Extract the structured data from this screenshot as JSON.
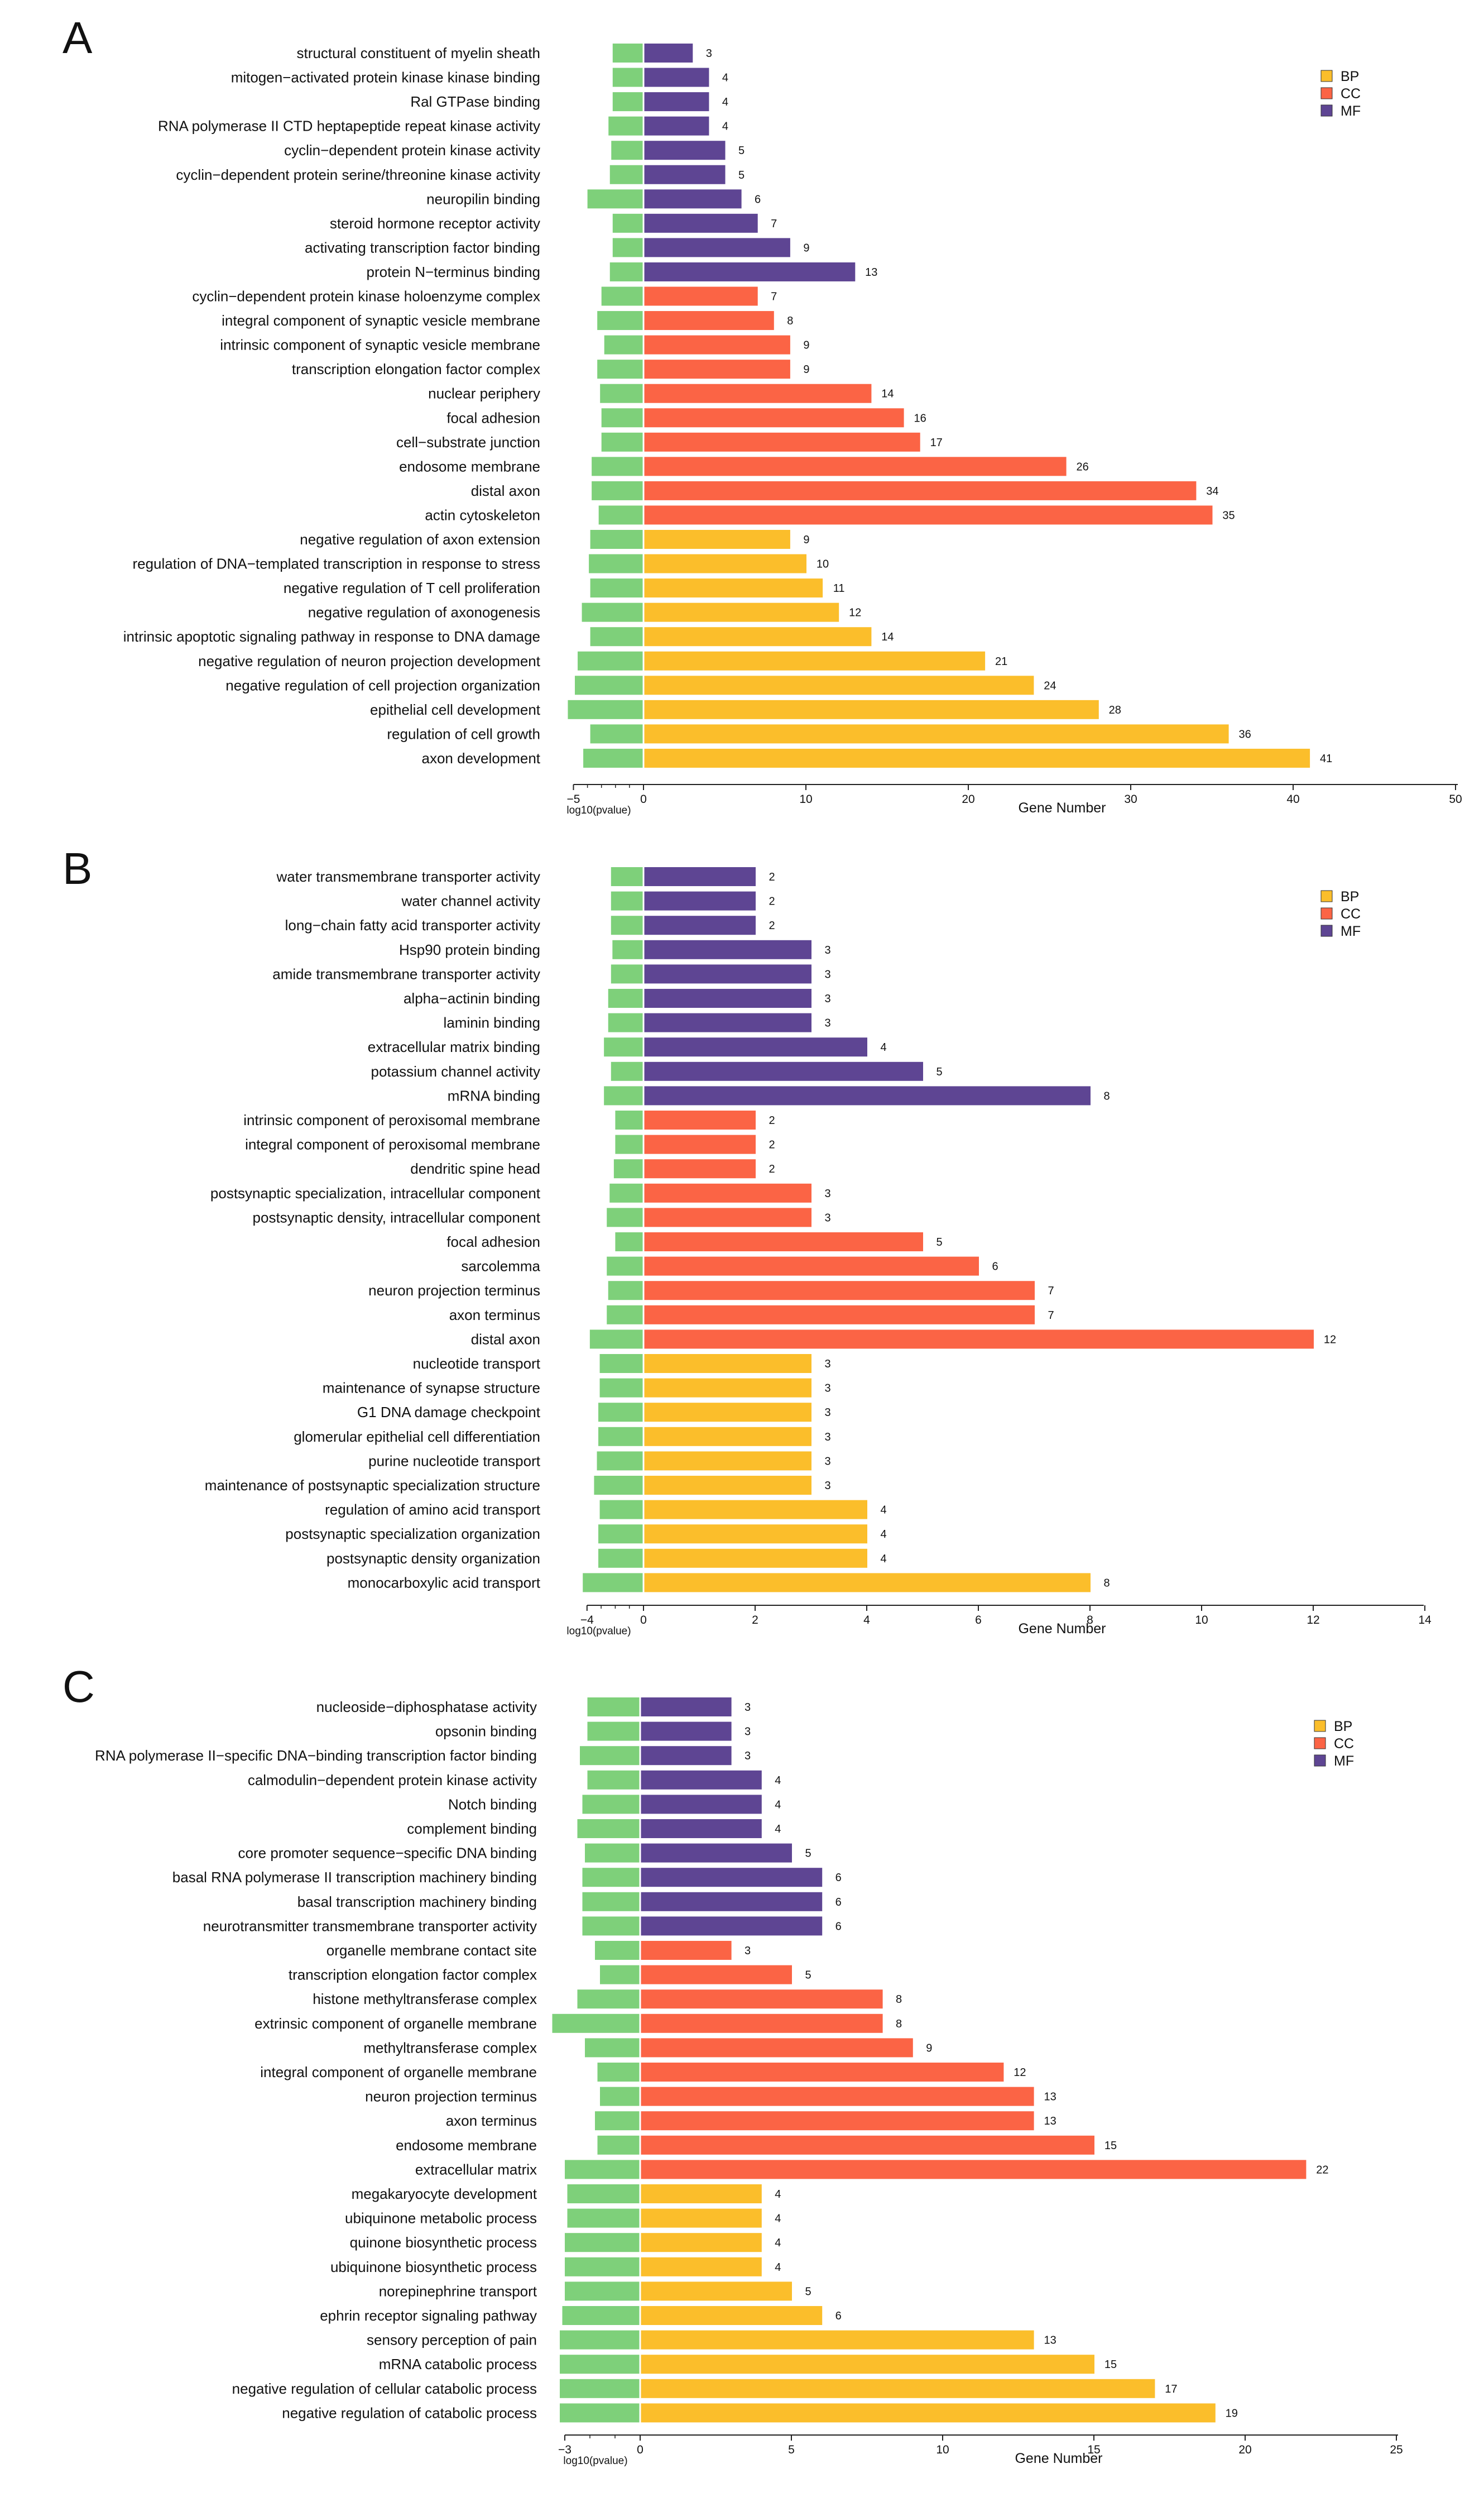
{
  "chart_data": [
    {
      "type": "bar",
      "panel": "A",
      "orientation": "horizontal",
      "xlabel": "Gene Number",
      "pvalue_axis_label": "log10(pvalue)",
      "gene_ticks": [
        "0",
        "10",
        "20",
        "30",
        "40",
        "50"
      ],
      "pvalue_ticks": [
        "−5",
        "0"
      ],
      "xlim": [
        0,
        50
      ],
      "pvalue_xlim": [
        -5,
        0
      ],
      "legend": {
        "position": "top-right",
        "entries": [
          "BP",
          "CC",
          "MF"
        ]
      },
      "colors": {
        "BP": "#FBBE2B",
        "CC": "#FB6445",
        "MF": "#5E4593",
        "pvalue": "#7ED07A"
      },
      "categories": [
        {
          "label": "structural constituent of myelin sheath",
          "group": "MF",
          "value": 3,
          "log10p": -2.2
        },
        {
          "label": "mitogen−activated protein kinase kinase binding",
          "group": "MF",
          "value": 4,
          "log10p": -2.2
        },
        {
          "label": "Ral GTPase binding",
          "group": "MF",
          "value": 4,
          "log10p": -2.2
        },
        {
          "label": "RNA polymerase II CTD heptapeptide repeat kinase activity",
          "group": "MF",
          "value": 4,
          "log10p": -2.5
        },
        {
          "label": "cyclin−dependent protein kinase activity",
          "group": "MF",
          "value": 5,
          "log10p": -2.3
        },
        {
          "label": "cyclin−dependent protein serine/threonine kinase activity",
          "group": "MF",
          "value": 5,
          "log10p": -2.4
        },
        {
          "label": "neuropilin binding",
          "group": "MF",
          "value": 6,
          "log10p": -4.0
        },
        {
          "label": "steroid hormone receptor activity",
          "group": "MF",
          "value": 7,
          "log10p": -2.2
        },
        {
          "label": "activating transcription factor binding",
          "group": "MF",
          "value": 9,
          "log10p": -2.2
        },
        {
          "label": "protein N−terminus binding",
          "group": "MF",
          "value": 13,
          "log10p": -2.4
        },
        {
          "label": "cyclin−dependent protein kinase holoenzyme complex",
          "group": "CC",
          "value": 7,
          "log10p": -3.0
        },
        {
          "label": "integral component of synaptic vesicle membrane",
          "group": "CC",
          "value": 8,
          "log10p": -3.3
        },
        {
          "label": "intrinsic component of synaptic vesicle membrane",
          "group": "CC",
          "value": 9,
          "log10p": -2.8
        },
        {
          "label": "transcription elongation factor complex",
          "group": "CC",
          "value": 9,
          "log10p": -3.3
        },
        {
          "label": "nuclear periphery",
          "group": "CC",
          "value": 14,
          "log10p": -3.1
        },
        {
          "label": "focal adhesion",
          "group": "CC",
          "value": 16,
          "log10p": -3.0
        },
        {
          "label": "cell−substrate junction",
          "group": "CC",
          "value": 17,
          "log10p": -3.0
        },
        {
          "label": "endosome membrane",
          "group": "CC",
          "value": 26,
          "log10p": -3.7
        },
        {
          "label": "distal axon",
          "group": "CC",
          "value": 34,
          "log10p": -3.7
        },
        {
          "label": "actin cytoskeleton",
          "group": "CC",
          "value": 35,
          "log10p": -3.2
        },
        {
          "label": "negative regulation of axon extension",
          "group": "BP",
          "value": 9,
          "log10p": -3.8
        },
        {
          "label": "regulation of DNA−templated transcription in response to stress",
          "group": "BP",
          "value": 10,
          "log10p": -3.9
        },
        {
          "label": "negative regulation of T cell proliferation",
          "group": "BP",
          "value": 11,
          "log10p": -3.8
        },
        {
          "label": "negative regulation of axonogenesis",
          "group": "BP",
          "value": 12,
          "log10p": -4.4
        },
        {
          "label": "intrinsic apoptotic signaling pathway in response to DNA damage",
          "group": "BP",
          "value": 14,
          "log10p": -3.8
        },
        {
          "label": "negative regulation of neuron projection development",
          "group": "BP",
          "value": 21,
          "log10p": -4.7
        },
        {
          "label": "negative regulation of cell projection organization",
          "group": "BP",
          "value": 24,
          "log10p": -4.9
        },
        {
          "label": "epithelial cell development",
          "group": "BP",
          "value": 28,
          "log10p": -5.4
        },
        {
          "label": "regulation of cell growth",
          "group": "BP",
          "value": 36,
          "log10p": -3.8
        },
        {
          "label": "axon development",
          "group": "BP",
          "value": 41,
          "log10p": -4.3
        }
      ]
    },
    {
      "type": "bar",
      "panel": "B",
      "orientation": "horizontal",
      "xlabel": "Gene Number",
      "pvalue_axis_label": "log10(pvalue)",
      "gene_ticks": [
        "0",
        "2",
        "4",
        "6",
        "8",
        "10",
        "12",
        "14"
      ],
      "pvalue_ticks": [
        "−4",
        "0"
      ],
      "xlim": [
        0,
        14
      ],
      "pvalue_xlim": [
        -4,
        0
      ],
      "legend": {
        "position": "top-right",
        "entries": [
          "BP",
          "CC",
          "MF"
        ]
      },
      "colors": {
        "BP": "#FBBE2B",
        "CC": "#FB6445",
        "MF": "#5E4593",
        "pvalue": "#7ED07A"
      },
      "categories": [
        {
          "label": "water transmembrane transporter activity",
          "group": "MF",
          "value": 2,
          "log10p": -2.3
        },
        {
          "label": "water channel activity",
          "group": "MF",
          "value": 2,
          "log10p": -2.3
        },
        {
          "label": "long−chain fatty acid transporter activity",
          "group": "MF",
          "value": 2,
          "log10p": -2.3
        },
        {
          "label": "Hsp90 protein binding",
          "group": "MF",
          "value": 3,
          "log10p": -2.2
        },
        {
          "label": "amide transmembrane transporter activity",
          "group": "MF",
          "value": 3,
          "log10p": -2.3
        },
        {
          "label": "alpha−actinin binding",
          "group": "MF",
          "value": 3,
          "log10p": -2.5
        },
        {
          "label": "laminin binding",
          "group": "MF",
          "value": 3,
          "log10p": -2.5
        },
        {
          "label": "extracellular matrix binding",
          "group": "MF",
          "value": 4,
          "log10p": -2.8
        },
        {
          "label": "potassium channel activity",
          "group": "MF",
          "value": 5,
          "log10p": -2.3
        },
        {
          "label": "mRNA binding",
          "group": "MF",
          "value": 8,
          "log10p": -2.8
        },
        {
          "label": "intrinsic component of peroxisomal membrane",
          "group": "CC",
          "value": 2,
          "log10p": -2.0
        },
        {
          "label": "integral component of peroxisomal membrane",
          "group": "CC",
          "value": 2,
          "log10p": -2.0
        },
        {
          "label": "dendritic spine head",
          "group": "CC",
          "value": 2,
          "log10p": -2.1
        },
        {
          "label": "postsynaptic specialization, intracellular component",
          "group": "CC",
          "value": 3,
          "log10p": -2.4
        },
        {
          "label": "postsynaptic density, intracellular component",
          "group": "CC",
          "value": 3,
          "log10p": -2.6
        },
        {
          "label": "focal adhesion",
          "group": "CC",
          "value": 5,
          "log10p": -2.0
        },
        {
          "label": "sarcolemma",
          "group": "CC",
          "value": 6,
          "log10p": -2.6
        },
        {
          "label": "neuron projection terminus",
          "group": "CC",
          "value": 7,
          "log10p": -2.5
        },
        {
          "label": "axon terminus",
          "group": "CC",
          "value": 7,
          "log10p": -2.6
        },
        {
          "label": "distal axon",
          "group": "CC",
          "value": 12,
          "log10p": -3.8
        },
        {
          "label": "nucleotide transport",
          "group": "BP",
          "value": 3,
          "log10p": -3.1
        },
        {
          "label": "maintenance of synapse structure",
          "group": "BP",
          "value": 3,
          "log10p": -3.1
        },
        {
          "label": "G1 DNA damage checkpoint",
          "group": "BP",
          "value": 3,
          "log10p": -3.2
        },
        {
          "label": "glomerular epithelial cell differentiation",
          "group": "BP",
          "value": 3,
          "log10p": -3.2
        },
        {
          "label": "purine nucleotide transport",
          "group": "BP",
          "value": 3,
          "log10p": -3.3
        },
        {
          "label": "maintenance of postsynaptic specialization structure",
          "group": "BP",
          "value": 3,
          "log10p": -3.5
        },
        {
          "label": "regulation of amino acid transport",
          "group": "BP",
          "value": 4,
          "log10p": -3.1
        },
        {
          "label": "postsynaptic specialization organization",
          "group": "BP",
          "value": 4,
          "log10p": -3.2
        },
        {
          "label": "postsynaptic density organization",
          "group": "BP",
          "value": 4,
          "log10p": -3.2
        },
        {
          "label": "monocarboxylic acid transport",
          "group": "BP",
          "value": 8,
          "log10p": -4.3
        }
      ]
    },
    {
      "type": "bar",
      "panel": "C",
      "orientation": "horizontal",
      "xlabel": "Gene Number",
      "pvalue_axis_label": "log10(pvalue)",
      "gene_ticks": [
        "0",
        "5",
        "10",
        "15",
        "20",
        "25"
      ],
      "pvalue_ticks": [
        "−3",
        "0"
      ],
      "xlim": [
        0,
        25
      ],
      "pvalue_xlim": [
        -3,
        0
      ],
      "legend": {
        "position": "top-right",
        "entries": [
          "BP",
          "CC",
          "MF"
        ]
      },
      "colors": {
        "BP": "#FBBE2B",
        "CC": "#FB6445",
        "MF": "#5E4593",
        "pvalue": "#7ED07A"
      },
      "categories": [
        {
          "label": "nucleoside−diphosphatase activity",
          "group": "MF",
          "value": 3,
          "log10p": -2.1
        },
        {
          "label": "opsonin binding",
          "group": "MF",
          "value": 3,
          "log10p": -2.1
        },
        {
          "label": "RNA polymerase II−specific DNA−binding transcription factor binding",
          "group": "MF",
          "value": 3,
          "log10p": -2.4
        },
        {
          "label": "calmodulin−dependent protein kinase activity",
          "group": "MF",
          "value": 4,
          "log10p": -2.1
        },
        {
          "label": "Notch binding",
          "group": "MF",
          "value": 4,
          "log10p": -2.3
        },
        {
          "label": "complement binding",
          "group": "MF",
          "value": 4,
          "log10p": -2.5
        },
        {
          "label": "core promoter sequence−specific DNA binding",
          "group": "MF",
          "value": 5,
          "log10p": -2.2
        },
        {
          "label": "basal RNA polymerase II transcription machinery binding",
          "group": "MF",
          "value": 6,
          "log10p": -2.3
        },
        {
          "label": "basal transcription machinery binding",
          "group": "MF",
          "value": 6,
          "log10p": -2.3
        },
        {
          "label": "neurotransmitter transmembrane transporter activity",
          "group": "MF",
          "value": 6,
          "log10p": -2.3
        },
        {
          "label": "organelle membrane contact site",
          "group": "CC",
          "value": 3,
          "log10p": -1.8
        },
        {
          "label": "transcription elongation factor complex",
          "group": "CC",
          "value": 5,
          "log10p": -1.6
        },
        {
          "label": "histone methyltransferase complex",
          "group": "CC",
          "value": 8,
          "log10p": -2.5
        },
        {
          "label": "extrinsic component of organelle membrane",
          "group": "CC",
          "value": 8,
          "log10p": -3.5
        },
        {
          "label": "methyltransferase complex",
          "group": "CC",
          "value": 9,
          "log10p": -2.2
        },
        {
          "label": "integral component of organelle membrane",
          "group": "CC",
          "value": 12,
          "log10p": -1.7
        },
        {
          "label": "neuron projection terminus",
          "group": "CC",
          "value": 13,
          "log10p": -1.6
        },
        {
          "label": "axon terminus",
          "group": "CC",
          "value": 13,
          "log10p": -1.8
        },
        {
          "label": "endosome membrane",
          "group": "CC",
          "value": 15,
          "log10p": -1.7
        },
        {
          "label": "extracellular matrix",
          "group": "CC",
          "value": 22,
          "log10p": -3.0
        },
        {
          "label": "megakaryocyte development",
          "group": "BP",
          "value": 4,
          "log10p": -2.9
        },
        {
          "label": "ubiquinone metabolic process",
          "group": "BP",
          "value": 4,
          "log10p": -2.9
        },
        {
          "label": "quinone biosynthetic process",
          "group": "BP",
          "value": 4,
          "log10p": -3.0
        },
        {
          "label": "ubiquinone biosynthetic process",
          "group": "BP",
          "value": 4,
          "log10p": -3.0
        },
        {
          "label": "norepinephrine transport",
          "group": "BP",
          "value": 5,
          "log10p": -3.0
        },
        {
          "label": "ephrin receptor signaling pathway",
          "group": "BP",
          "value": 6,
          "log10p": -3.1
        },
        {
          "label": "sensory perception of pain",
          "group": "BP",
          "value": 13,
          "log10p": -3.2
        },
        {
          "label": "mRNA catabolic process",
          "group": "BP",
          "value": 15,
          "log10p": -3.2
        },
        {
          "label": "negative regulation of cellular catabolic process",
          "group": "BP",
          "value": 17,
          "log10p": -3.2
        },
        {
          "label": "negative regulation of catabolic process",
          "group": "BP",
          "value": 19,
          "log10p": -3.2
        }
      ]
    }
  ]
}
